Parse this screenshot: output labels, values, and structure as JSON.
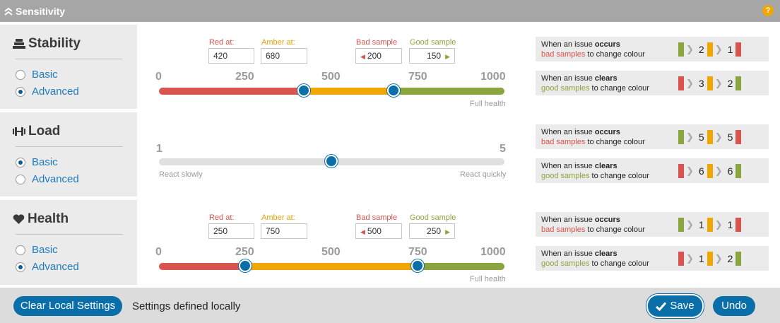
{
  "header": {
    "title": "Sensitivity",
    "help": "?"
  },
  "sections": {
    "stability": {
      "title": "Stability",
      "basic": "Basic",
      "advanced": "Advanced",
      "red_label": "Red at:",
      "amber_label": "Amber at:",
      "bad_label": "Bad sample",
      "good_label": "Good sample",
      "red_value": "420",
      "amber_value": "680",
      "bad_value": "200",
      "good_value": "150",
      "ticks": [
        "0",
        "250",
        "500",
        "750",
        "1000"
      ],
      "full_health": "Full health",
      "occurs": {
        "line1a": "When an issue ",
        "line1b": "occurs",
        "line2a": "bad samples",
        "line2b": " to change colour",
        "n1": "2",
        "n2": "1"
      },
      "clears": {
        "line1a": "When an issue ",
        "line1b": "clears",
        "line2a": "good samples",
        "line2b": " to change colour",
        "n1": "3",
        "n2": "2"
      }
    },
    "load": {
      "title": "Load",
      "basic": "Basic",
      "advanced": "Advanced",
      "min": "1",
      "max": "5",
      "slow": "React slowly",
      "quick": "React quickly",
      "occurs": {
        "line1a": "When an issue ",
        "line1b": "occurs",
        "line2a": "bad samples",
        "line2b": " to change colour",
        "n1": "5",
        "n2": "5"
      },
      "clears": {
        "line1a": "When an issue ",
        "line1b": "clears",
        "line2a": "good samples",
        "line2b": " to change colour",
        "n1": "6",
        "n2": "6"
      }
    },
    "health": {
      "title": "Health",
      "basic": "Basic",
      "advanced": "Advanced",
      "red_label": "Red at:",
      "amber_label": "Amber at:",
      "bad_label": "Bad sample",
      "good_label": "Good sample",
      "red_value": "250",
      "amber_value": "750",
      "bad_value": "500",
      "good_value": "250",
      "ticks": [
        "0",
        "250",
        "500",
        "750",
        "1000"
      ],
      "full_health": "Full health",
      "occurs": {
        "line1a": "When an issue ",
        "line1b": "occurs",
        "line2a": "bad samples",
        "line2b": " to change colour",
        "n1": "1",
        "n2": "1"
      },
      "clears": {
        "line1a": "When an issue ",
        "line1b": "clears",
        "line2a": "good samples",
        "line2b": " to change colour",
        "n1": "1",
        "n2": "2"
      }
    }
  },
  "footer": {
    "clear": "Clear Local Settings",
    "status": "Settings defined locally",
    "save": "Save",
    "undo": "Undo"
  },
  "colors": {
    "red": "#d9534f",
    "amber": "#f0a800",
    "green": "#8ba63e",
    "accent": "#0a6ea8"
  }
}
